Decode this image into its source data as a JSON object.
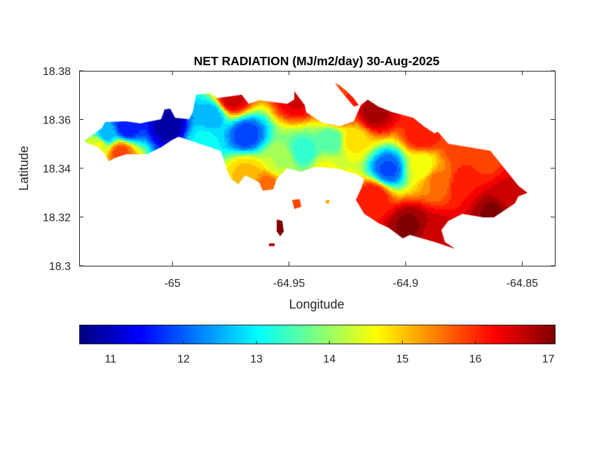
{
  "chart_data": {
    "type": "heatmap",
    "title": "NET RADIATION (MJ/m2/day) 30-Aug-2025",
    "xlabel": "Longitude",
    "ylabel": "Latitude",
    "xlim": [
      -65.04,
      -64.836
    ],
    "ylim": [
      18.3,
      18.38
    ],
    "xticks": [
      -65,
      -64.95,
      -64.9,
      -64.85
    ],
    "xtick_labels": [
      "-65",
      "-64.95",
      "-64.9",
      "-64.85"
    ],
    "yticks": [
      18.3,
      18.32,
      18.34,
      18.36,
      18.38
    ],
    "ytick_labels": [
      "18.3",
      "18.32",
      "18.34",
      "18.36",
      "18.38"
    ],
    "colormap": "jet",
    "colorbar": {
      "location": "bottom",
      "clim": [
        10.57,
        17.09
      ],
      "ticks": [
        11,
        12,
        13,
        14,
        15,
        16,
        17
      ],
      "tick_labels": [
        "11",
        "12",
        "13",
        "14",
        "15",
        "16",
        "17"
      ]
    },
    "grid": false,
    "field_samples": [
      {
        "lon": -65.002,
        "lat": 18.358,
        "value": 10.8
      },
      {
        "lon": -65.02,
        "lat": 18.357,
        "value": 11.5
      },
      {
        "lon": -65.029,
        "lat": 18.354,
        "value": 12.5
      },
      {
        "lon": -65.032,
        "lat": 18.35,
        "value": 14.5
      },
      {
        "lon": -65.023,
        "lat": 18.347,
        "value": 15.8
      },
      {
        "lon": -64.969,
        "lat": 18.354,
        "value": 11.8
      },
      {
        "lon": -64.984,
        "lat": 18.362,
        "value": 12.5
      },
      {
        "lon": -64.987,
        "lat": 18.352,
        "value": 13.0
      },
      {
        "lon": -64.944,
        "lat": 18.347,
        "value": 13.3
      },
      {
        "lon": -64.932,
        "lat": 18.352,
        "value": 13.5
      },
      {
        "lon": -64.908,
        "lat": 18.34,
        "value": 11.9
      },
      {
        "lon": -64.975,
        "lat": 18.369,
        "value": 16.6
      },
      {
        "lon": -64.947,
        "lat": 18.369,
        "value": 16.5
      },
      {
        "lon": -64.914,
        "lat": 18.363,
        "value": 16.8
      },
      {
        "lon": -64.893,
        "lat": 18.354,
        "value": 16.2
      },
      {
        "lon": -64.878,
        "lat": 18.349,
        "value": 15.8
      },
      {
        "lon": -64.866,
        "lat": 18.343,
        "value": 15.9
      },
      {
        "lon": -64.857,
        "lat": 18.331,
        "value": 16.5
      },
      {
        "lon": -64.863,
        "lat": 18.323,
        "value": 17.0
      },
      {
        "lon": -64.899,
        "lat": 18.317,
        "value": 17.0
      },
      {
        "lon": -64.887,
        "lat": 18.313,
        "value": 16.6
      },
      {
        "lon": -64.914,
        "lat": 18.329,
        "value": 16.2
      },
      {
        "lon": -64.969,
        "lat": 18.339,
        "value": 15.0
      },
      {
        "lon": -64.96,
        "lat": 18.333,
        "value": 15.6
      },
      {
        "lon": -64.887,
        "lat": 18.336,
        "value": 15.5
      },
      {
        "lon": -64.875,
        "lat": 18.334,
        "value": 16.2
      },
      {
        "lon": -64.935,
        "lat": 18.34,
        "value": 14.5
      },
      {
        "lon": -64.954,
        "lat": 18.343,
        "value": 14.2
      },
      {
        "lon": -64.923,
        "lat": 18.352,
        "value": 14.8
      },
      {
        "lon": -64.893,
        "lat": 18.341,
        "value": 14.5
      },
      {
        "lon": -64.929,
        "lat": 18.363,
        "value": 16.0
      },
      {
        "lon": -64.954,
        "lat": 18.317,
        "value": 17.0
      },
      {
        "lon": -64.947,
        "lat": 18.325,
        "value": 15.8
      }
    ]
  }
}
